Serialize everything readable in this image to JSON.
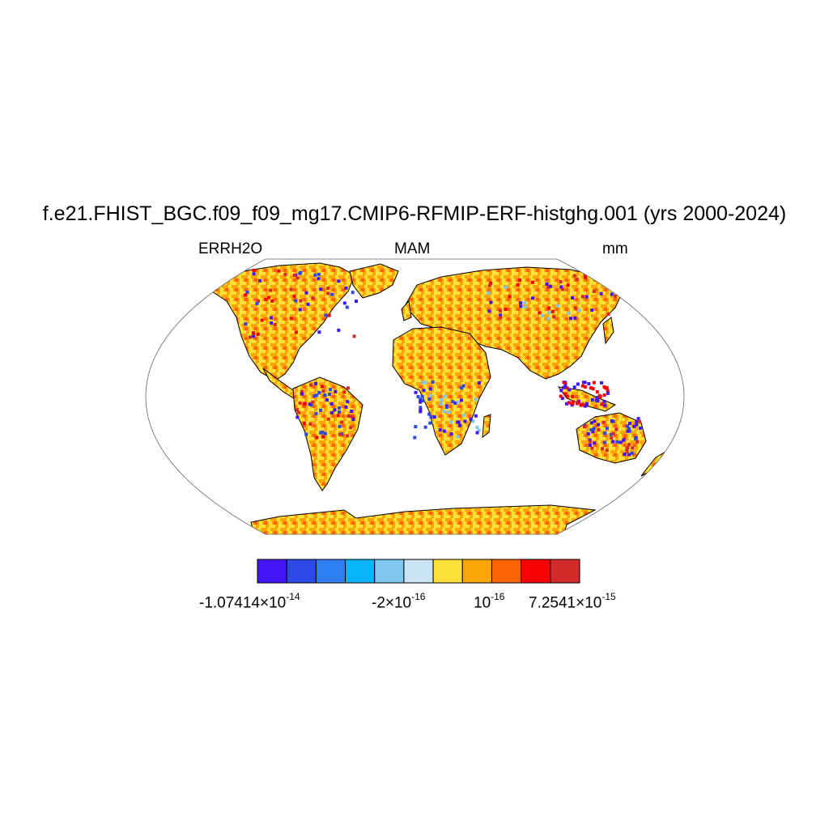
{
  "title": "f.e21.FHIST_BGC.f09_f09_mg17.CMIP6-RFMIP-ERF-histghg.001 (yrs 2000-2024)",
  "variable": "ERRH2O",
  "season": "MAM",
  "units": "mm",
  "projection": "Robinson",
  "colorbar": {
    "colors": [
      "#4216f5",
      "#2d4ae7",
      "#2f7ef0",
      "#0ab4fa",
      "#7ec8ef",
      "#c8e4f6",
      "#fce03a",
      "#fba506",
      "#fd6305",
      "#f70201",
      "#d42a2b"
    ],
    "labels": [
      {
        "base": "-1.07414×10",
        "exp": "-14"
      },
      {
        "base": "-2×10",
        "exp": "-16"
      },
      {
        "base": "10",
        "exp": "-16"
      },
      {
        "base": "7.2541×10",
        "exp": "-15"
      }
    ]
  }
}
